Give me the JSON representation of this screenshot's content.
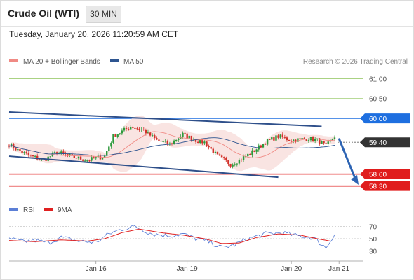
{
  "header": {
    "title": "Crude Oil (WTI)",
    "timeframe": "30 MIN",
    "datetime": "Tuesday, January 20, 2026 11:20:59 AM CET"
  },
  "legend": {
    "ma20_label": "MA 20 + Bollinger Bands",
    "ma20_color": "#f08a84",
    "ma50_label": "MA 50",
    "ma50_color": "#2e5590",
    "credit": "Research © 2026 Trading Central"
  },
  "rsi_legend": {
    "rsi_label": "RSI",
    "rsi_color": "#5b7fd6",
    "ma9_label": "9MA",
    "ma9_color": "#e02020"
  },
  "colors": {
    "up": "#2d9a3c",
    "down": "#d2312a",
    "resistance": "#1e6fe0",
    "support": "#e01c1c",
    "target_green": "#8dc45a",
    "channel": "#2e4f8a",
    "current": "#333333",
    "arrow": "#2c63b3"
  },
  "chart_data": {
    "type": "line",
    "price_levels": [
      {
        "label": "61.00",
        "kind": "target"
      },
      {
        "label": "60.50",
        "kind": "target"
      },
      {
        "label": "60.00",
        "kind": "resistance"
      },
      {
        "label": "59.40",
        "kind": "current"
      },
      {
        "label": "58.60",
        "kind": "support"
      },
      {
        "label": "58.30",
        "kind": "support"
      }
    ],
    "y_range": [
      58.1,
      61.2
    ],
    "x_labels": [
      "Jan 16",
      "Jan 19",
      "Jan 20",
      "Jan 21"
    ],
    "price_anchors": [
      [
        0,
        59.35
      ],
      [
        4,
        59.2
      ],
      [
        10,
        59.05
      ],
      [
        16,
        58.95
      ],
      [
        22,
        59.15
      ],
      [
        28,
        59.05
      ],
      [
        36,
        58.95
      ],
      [
        44,
        59.05
      ],
      [
        48,
        59.55
      ],
      [
        56,
        59.8
      ],
      [
        62,
        59.7
      ],
      [
        68,
        59.45
      ],
      [
        74,
        59.35
      ],
      [
        80,
        59.6
      ],
      [
        86,
        59.45
      ],
      [
        90,
        59.4
      ],
      [
        96,
        59.05
      ],
      [
        102,
        58.85
      ],
      [
        106,
        58.95
      ],
      [
        112,
        59.15
      ],
      [
        118,
        59.4
      ],
      [
        124,
        59.55
      ],
      [
        130,
        59.45
      ],
      [
        138,
        59.5
      ],
      [
        142,
        59.45
      ],
      [
        146,
        59.3
      ],
      [
        150,
        59.55
      ]
    ],
    "channel_upper": [
      [
        0,
        60.16
      ],
      [
        144,
        59.8
      ]
    ],
    "channel_lower": [
      [
        0,
        59.05
      ],
      [
        124,
        58.52
      ]
    ],
    "rsi": {
      "levels": [
        70,
        50,
        30
      ],
      "y_range": [
        20,
        80
      ],
      "rsi_anchors": [
        [
          0,
          50
        ],
        [
          6,
          45
        ],
        [
          12,
          47
        ],
        [
          18,
          43
        ],
        [
          24,
          52
        ],
        [
          32,
          46
        ],
        [
          40,
          44
        ],
        [
          46,
          58
        ],
        [
          52,
          66
        ],
        [
          58,
          70
        ],
        [
          66,
          58
        ],
        [
          74,
          55
        ],
        [
          80,
          58
        ],
        [
          86,
          50
        ],
        [
          92,
          45
        ],
        [
          98,
          35
        ],
        [
          104,
          40
        ],
        [
          110,
          50
        ],
        [
          118,
          58
        ],
        [
          126,
          60
        ],
        [
          132,
          55
        ],
        [
          140,
          52
        ],
        [
          146,
          35
        ],
        [
          150,
          58
        ]
      ],
      "ma9_anchors": [
        [
          0,
          47
        ],
        [
          12,
          45
        ],
        [
          24,
          48
        ],
        [
          36,
          46
        ],
        [
          44,
          50
        ],
        [
          52,
          60
        ],
        [
          60,
          66
        ],
        [
          70,
          60
        ],
        [
          80,
          56
        ],
        [
          90,
          50
        ],
        [
          98,
          42
        ],
        [
          106,
          43
        ],
        [
          114,
          52
        ],
        [
          124,
          58
        ],
        [
          134,
          56
        ],
        [
          142,
          50
        ],
        [
          148,
          46
        ]
      ]
    }
  }
}
